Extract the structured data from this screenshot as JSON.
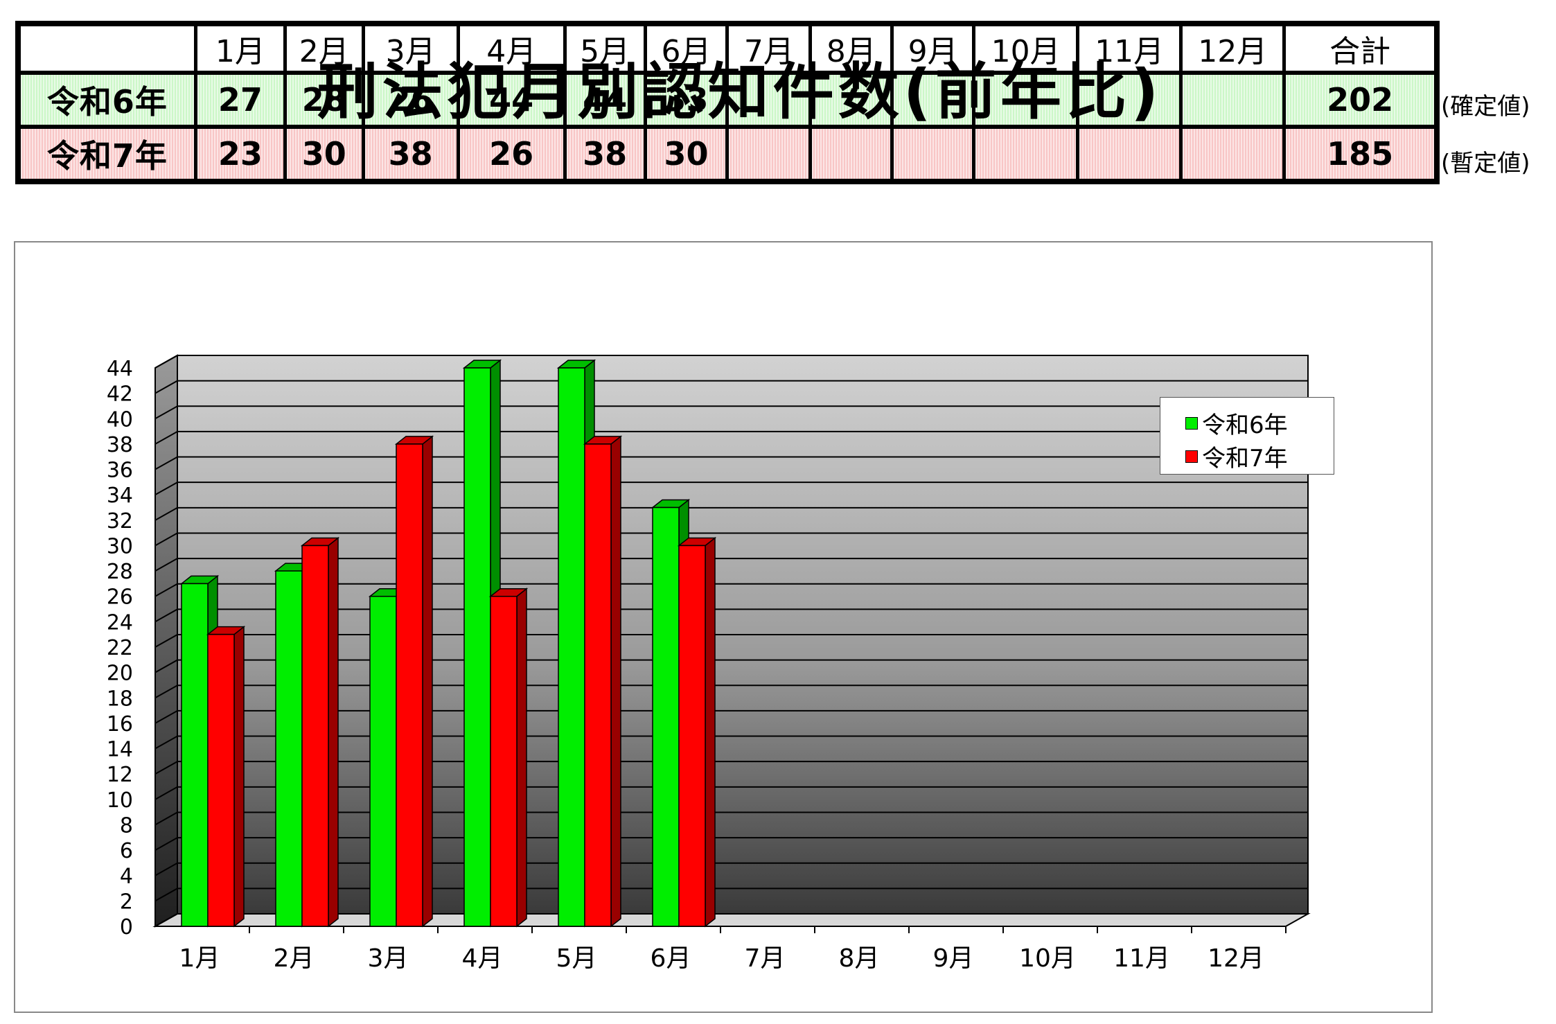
{
  "table": {
    "header_blank": "",
    "months": [
      "1月",
      "2月",
      "3月",
      "4月",
      "5月",
      "6月",
      "7月",
      "8月",
      "9月",
      "10月",
      "11月",
      "12月"
    ],
    "total_label": "合計",
    "rows": [
      {
        "label": "令和6年",
        "values": [
          "27",
          "28",
          "26",
          "44",
          "44",
          "33",
          "",
          "",
          "",
          "",
          "",
          ""
        ],
        "total": "202",
        "note": "(確定値)"
      },
      {
        "label": "令和7年",
        "values": [
          "23",
          "30",
          "38",
          "26",
          "38",
          "30",
          "",
          "",
          "",
          "",
          "",
          ""
        ],
        "total": "185",
        "note": "(暫定値)"
      }
    ]
  },
  "chart_data": {
    "type": "bar",
    "title": "刑法犯月別認知件数(前年比)",
    "categories": [
      "1月",
      "2月",
      "3月",
      "4月",
      "5月",
      "6月",
      "7月",
      "8月",
      "9月",
      "10月",
      "11月",
      "12月"
    ],
    "series": [
      {
        "name": "令和6年",
        "values": [
          27,
          28,
          26,
          44,
          44,
          33,
          null,
          null,
          null,
          null,
          null,
          null
        ],
        "color": "#00ee00"
      },
      {
        "name": "令和7年",
        "values": [
          23,
          30,
          38,
          26,
          38,
          30,
          null,
          null,
          null,
          null,
          null,
          null
        ],
        "color": "#ff0000"
      }
    ],
    "ylim": [
      0,
      44
    ],
    "yticks": [
      0,
      2,
      4,
      6,
      8,
      10,
      12,
      14,
      16,
      18,
      20,
      22,
      24,
      26,
      28,
      30,
      32,
      34,
      36,
      38,
      40,
      42,
      44
    ],
    "grid": true,
    "legend_position": "top-right",
    "style": "3d-clustered"
  }
}
